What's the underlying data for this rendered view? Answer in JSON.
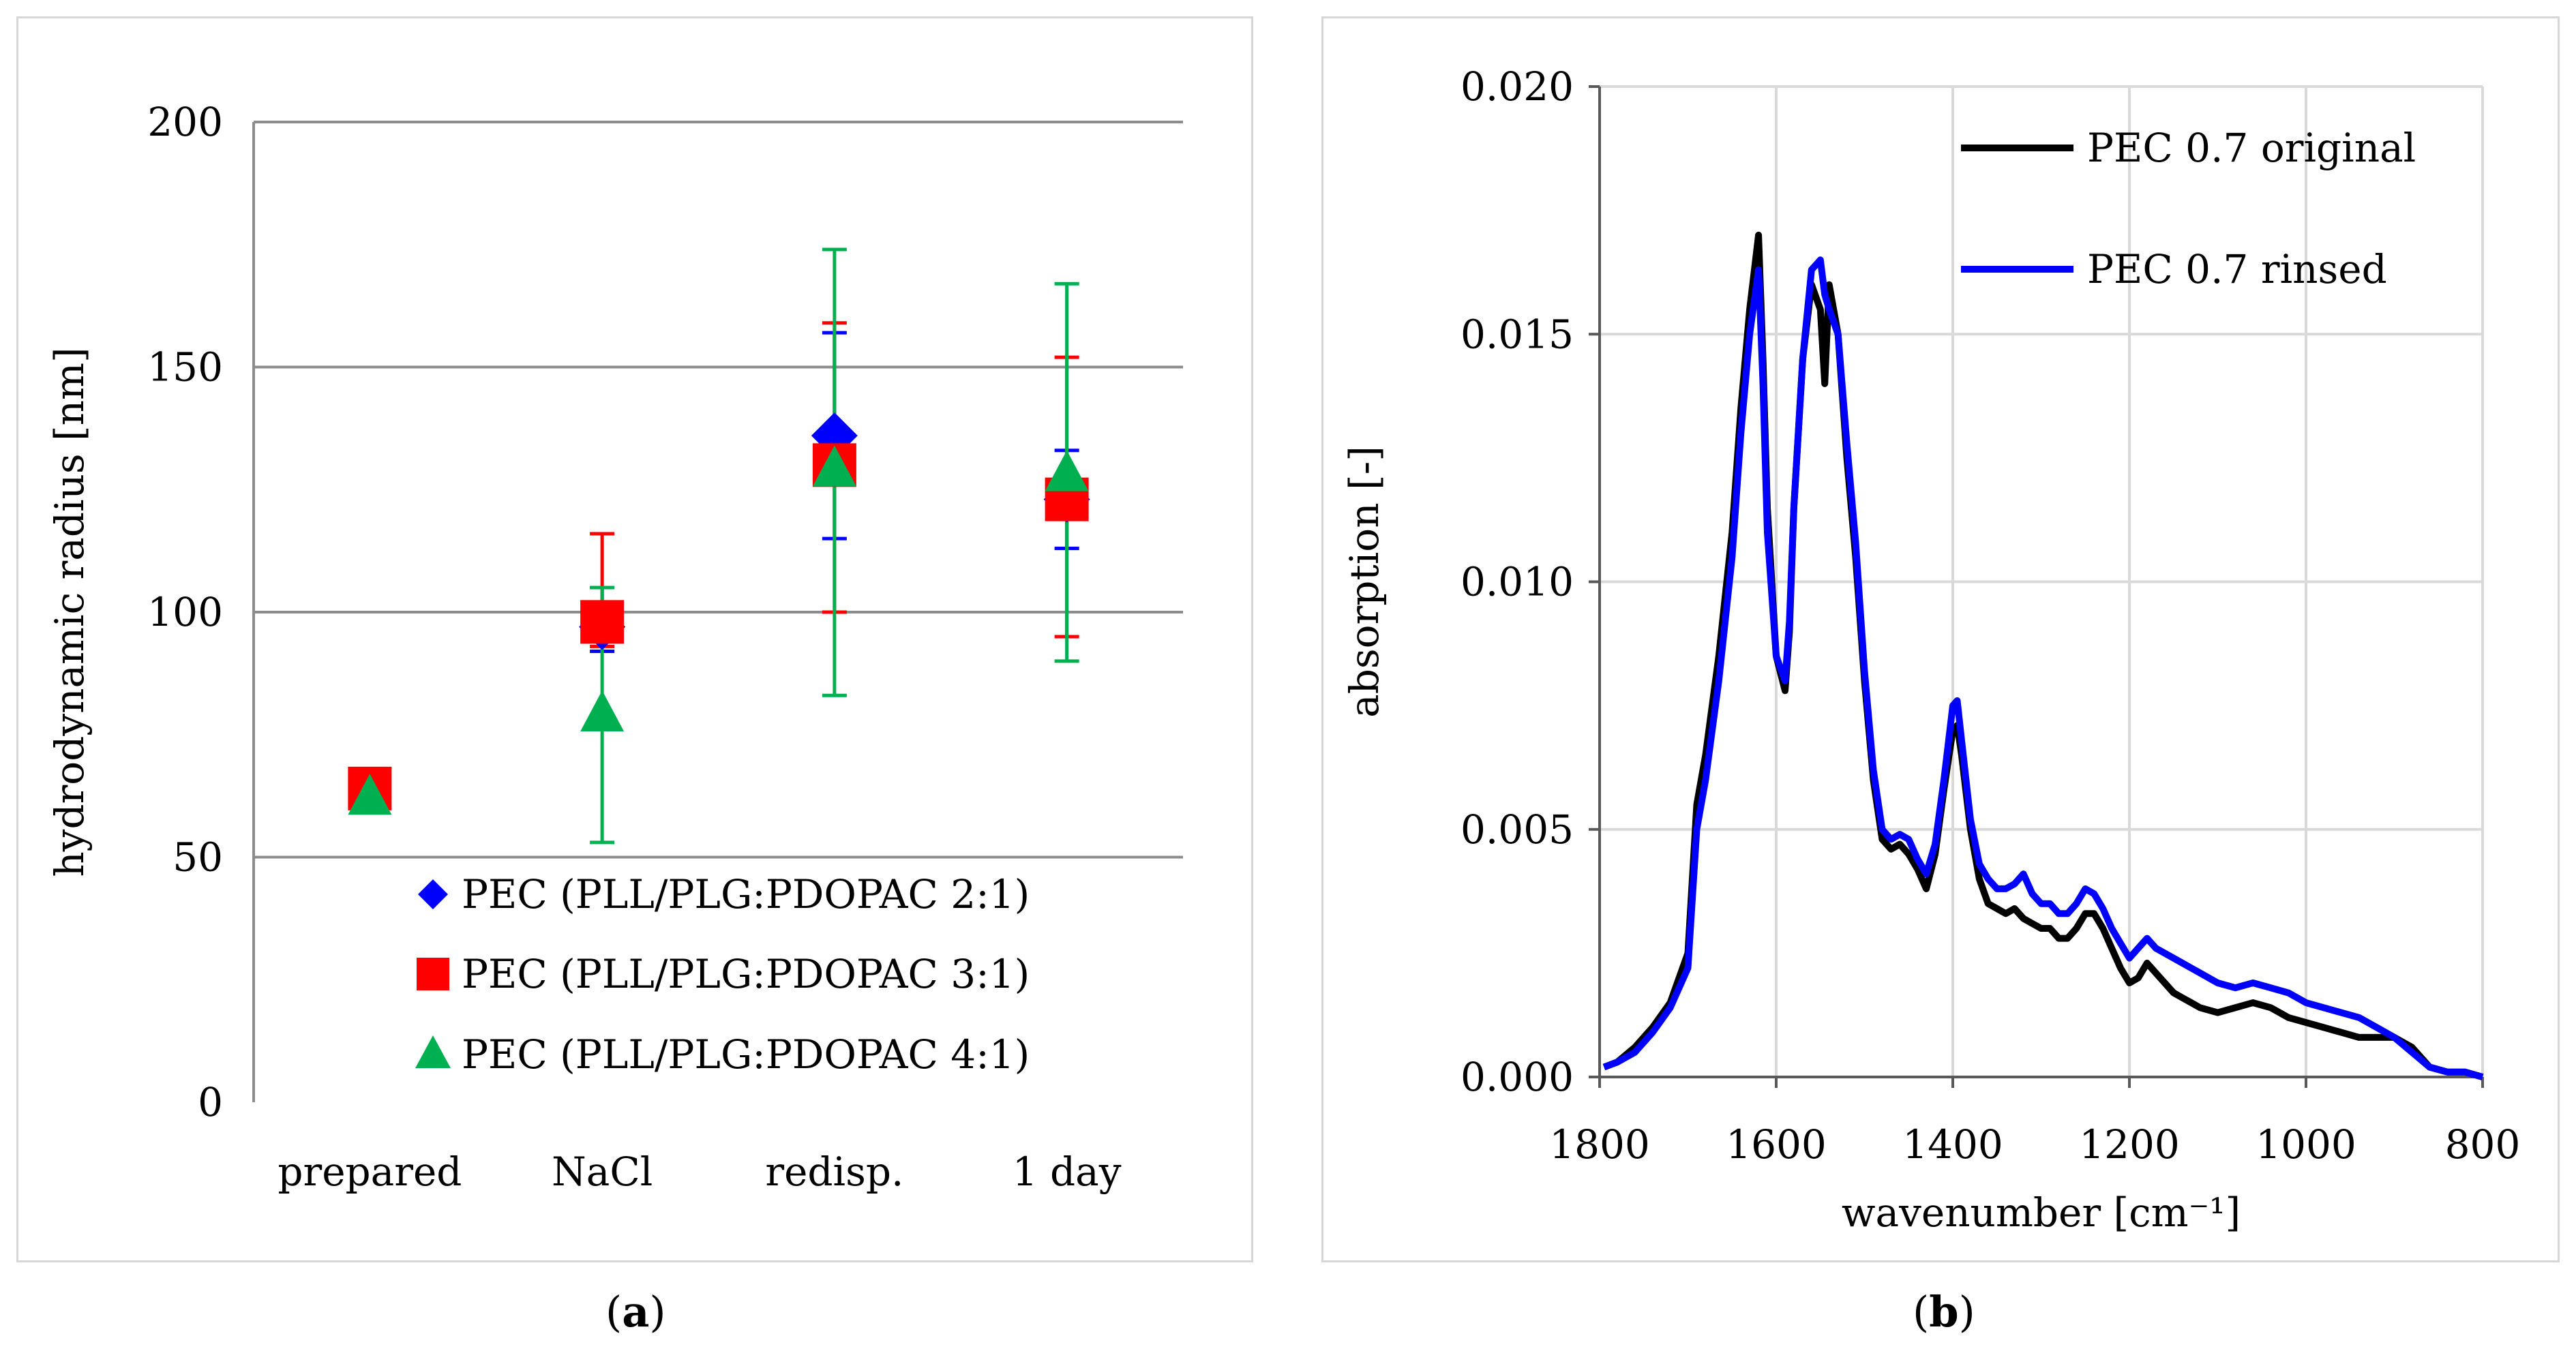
{
  "chart_data": [
    {
      "type": "scatter",
      "panel_label": "a",
      "title": "",
      "xlabel": "",
      "ylabel": "hydrodynamic radius [nm]",
      "categories": [
        "prepared",
        "NaCl",
        "redisp.",
        "1 day"
      ],
      "ylim": [
        0,
        200
      ],
      "yticks": [
        "0",
        "50",
        "100",
        "150",
        "200"
      ],
      "grid": "horizontal",
      "legend_position": "bottom-right",
      "series": [
        {
          "name": "PEC (PLL/PLG:PDOPAC 2:1)",
          "color": "#0000ff",
          "marker": "diamond",
          "values": [
            null,
            97,
            136,
            123
          ],
          "err_low": [
            null,
            92,
            115,
            113
          ],
          "err_high": [
            null,
            105,
            157,
            133
          ]
        },
        {
          "name": "PEC (PLL/PLG:PDOPAC 3:1)",
          "color": "#ff0000",
          "marker": "square",
          "values": [
            64,
            98,
            130,
            123
          ],
          "err_low": [
            null,
            93,
            100,
            95
          ],
          "err_high": [
            null,
            116,
            159,
            152
          ]
        },
        {
          "name": "PEC (PLL/PLG:PDOPAC 4:1)",
          "color": "#00b050",
          "marker": "triangle",
          "values": [
            62,
            79,
            129,
            128
          ],
          "err_low": [
            null,
            53,
            83,
            90
          ],
          "err_high": [
            null,
            105,
            174,
            167
          ]
        }
      ]
    },
    {
      "type": "line",
      "panel_label": "b",
      "title": "",
      "xlabel": "wavenumber [cm⁻¹]",
      "ylabel": "absorption [-]",
      "xlim": [
        1800,
        800
      ],
      "ylim": [
        0,
        0.02
      ],
      "xticks": [
        "1800",
        "1600",
        "1400",
        "1200",
        "1000",
        "800"
      ],
      "yticks": [
        "0.000",
        "0.005",
        "0.010",
        "0.015",
        "0.020"
      ],
      "grid": "both",
      "legend_position": "top-right",
      "series": [
        {
          "name": "PEC 0.7 original",
          "color": "#000000",
          "x": [
            1795,
            1780,
            1760,
            1740,
            1720,
            1700,
            1690,
            1680,
            1665,
            1650,
            1640,
            1630,
            1620,
            1615,
            1610,
            1600,
            1590,
            1585,
            1580,
            1570,
            1560,
            1550,
            1545,
            1540,
            1530,
            1520,
            1510,
            1500,
            1490,
            1480,
            1470,
            1460,
            1450,
            1440,
            1430,
            1420,
            1410,
            1400,
            1395,
            1390,
            1380,
            1370,
            1360,
            1350,
            1340,
            1330,
            1320,
            1310,
            1300,
            1290,
            1280,
            1270,
            1260,
            1250,
            1240,
            1230,
            1220,
            1210,
            1200,
            1190,
            1180,
            1170,
            1160,
            1150,
            1140,
            1130,
            1120,
            1100,
            1080,
            1060,
            1040,
            1020,
            1000,
            980,
            960,
            940,
            920,
            900,
            880,
            860,
            840,
            820,
            800
          ],
          "y": [
            0.0002,
            0.0003,
            0.0006,
            0.001,
            0.0015,
            0.0025,
            0.0055,
            0.0065,
            0.0085,
            0.011,
            0.0135,
            0.0155,
            0.017,
            0.0145,
            0.0115,
            0.0085,
            0.0078,
            0.009,
            0.0115,
            0.0145,
            0.016,
            0.0155,
            0.014,
            0.016,
            0.015,
            0.0125,
            0.0105,
            0.008,
            0.006,
            0.0048,
            0.0046,
            0.0047,
            0.0045,
            0.0042,
            0.0038,
            0.0045,
            0.0058,
            0.007,
            0.0071,
            0.0065,
            0.005,
            0.004,
            0.0035,
            0.0034,
            0.0033,
            0.0034,
            0.0032,
            0.0031,
            0.003,
            0.003,
            0.0028,
            0.0028,
            0.003,
            0.0033,
            0.0033,
            0.003,
            0.0026,
            0.0022,
            0.0019,
            0.002,
            0.0023,
            0.0021,
            0.0019,
            0.0017,
            0.0016,
            0.0015,
            0.0014,
            0.0013,
            0.0014,
            0.0015,
            0.0014,
            0.0012,
            0.0011,
            0.001,
            0.0009,
            0.0008,
            0.0008,
            0.0008,
            0.0006,
            0.0002,
            0.0001,
            0.0001,
            0.0
          ]
        },
        {
          "name": "PEC 0.7 rinsed",
          "color": "#0000ff",
          "x": [
            1795,
            1780,
            1760,
            1740,
            1720,
            1700,
            1690,
            1680,
            1665,
            1650,
            1640,
            1630,
            1620,
            1615,
            1610,
            1600,
            1590,
            1585,
            1580,
            1570,
            1560,
            1550,
            1545,
            1540,
            1530,
            1520,
            1510,
            1500,
            1490,
            1480,
            1470,
            1460,
            1450,
            1440,
            1430,
            1420,
            1410,
            1400,
            1395,
            1390,
            1380,
            1370,
            1360,
            1350,
            1340,
            1330,
            1320,
            1310,
            1300,
            1290,
            1280,
            1270,
            1260,
            1250,
            1240,
            1230,
            1220,
            1210,
            1200,
            1190,
            1180,
            1170,
            1160,
            1150,
            1140,
            1130,
            1120,
            1100,
            1080,
            1060,
            1040,
            1020,
            1000,
            980,
            960,
            940,
            920,
            900,
            880,
            860,
            840,
            820,
            800
          ],
          "y": [
            0.0002,
            0.0003,
            0.0005,
            0.0009,
            0.0014,
            0.0022,
            0.005,
            0.006,
            0.008,
            0.0105,
            0.013,
            0.015,
            0.0163,
            0.014,
            0.011,
            0.0085,
            0.008,
            0.0092,
            0.0115,
            0.0145,
            0.0163,
            0.0165,
            0.0158,
            0.0155,
            0.015,
            0.0128,
            0.0108,
            0.0082,
            0.0062,
            0.005,
            0.0048,
            0.0049,
            0.0048,
            0.0044,
            0.0041,
            0.0047,
            0.006,
            0.0075,
            0.0076,
            0.0068,
            0.0052,
            0.0043,
            0.004,
            0.0038,
            0.0038,
            0.0039,
            0.0041,
            0.0037,
            0.0035,
            0.0035,
            0.0033,
            0.0033,
            0.0035,
            0.0038,
            0.0037,
            0.0034,
            0.003,
            0.0027,
            0.0024,
            0.0026,
            0.0028,
            0.0026,
            0.0025,
            0.0024,
            0.0023,
            0.0022,
            0.0021,
            0.0019,
            0.0018,
            0.0019,
            0.0018,
            0.0017,
            0.0015,
            0.0014,
            0.0013,
            0.0012,
            0.001,
            0.0008,
            0.0005,
            0.0002,
            0.0001,
            0.0001,
            0.0
          ]
        }
      ]
    }
  ],
  "labels": {
    "a": "a",
    "b": "b"
  }
}
